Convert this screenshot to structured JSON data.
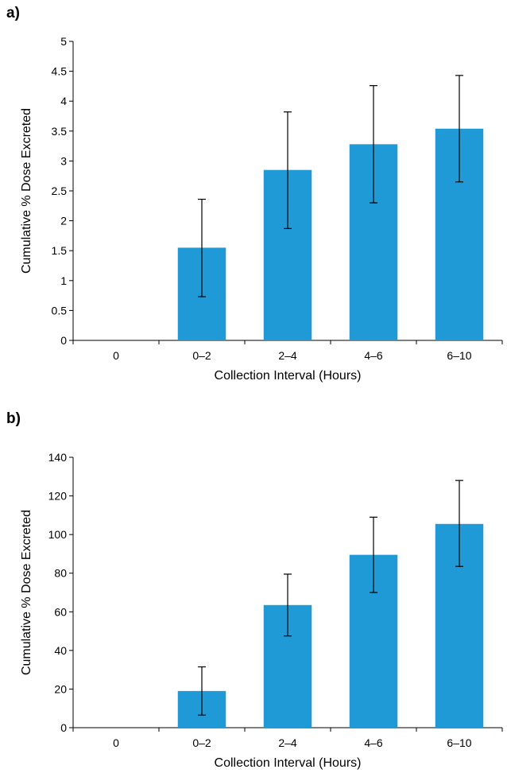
{
  "panels": [
    {
      "label": "a)",
      "chart_data": {
        "type": "bar",
        "categories": [
          "0",
          "0–2",
          "2–4",
          "4–6",
          "6–10"
        ],
        "series": [
          {
            "values": [
              0,
              1.55,
              2.85,
              3.28,
              3.54
            ],
            "error_low": [
              0,
              0.73,
              1.87,
              2.3,
              2.65
            ],
            "error_high": [
              0,
              2.36,
              3.82,
              4.26,
              4.43
            ]
          }
        ],
        "xlabel": "Collection Interval (Hours)",
        "ylabel": "Cumulative % Dose Excreted",
        "ylim": [
          0,
          5
        ],
        "yticks": [
          "0",
          "0.5",
          "1",
          "1.5",
          "2",
          "2.5",
          "3",
          "3.5",
          "4",
          "4.5",
          "5"
        ],
        "grid": false,
        "bar_color": "#1f9ad6"
      }
    },
    {
      "label": "b)",
      "chart_data": {
        "type": "bar",
        "categories": [
          "0",
          "0–2",
          "2–4",
          "4–6",
          "6–10"
        ],
        "series": [
          {
            "values": [
              0,
              19,
              63.5,
              89.5,
              105.5
            ],
            "error_low": [
              0,
              6.5,
              47.5,
              70,
              83.5
            ],
            "error_high": [
              0,
              31.5,
              79.5,
              109,
              128
            ]
          }
        ],
        "xlabel": "Collection Interval (Hours)",
        "ylabel": "Cumulative % Dose  Excreted",
        "ylim": [
          0,
          140
        ],
        "yticks": [
          "0",
          "20",
          "40",
          "60",
          "80",
          "100",
          "120",
          "140"
        ],
        "grid": false,
        "bar_color": "#1f9ad6"
      }
    }
  ]
}
